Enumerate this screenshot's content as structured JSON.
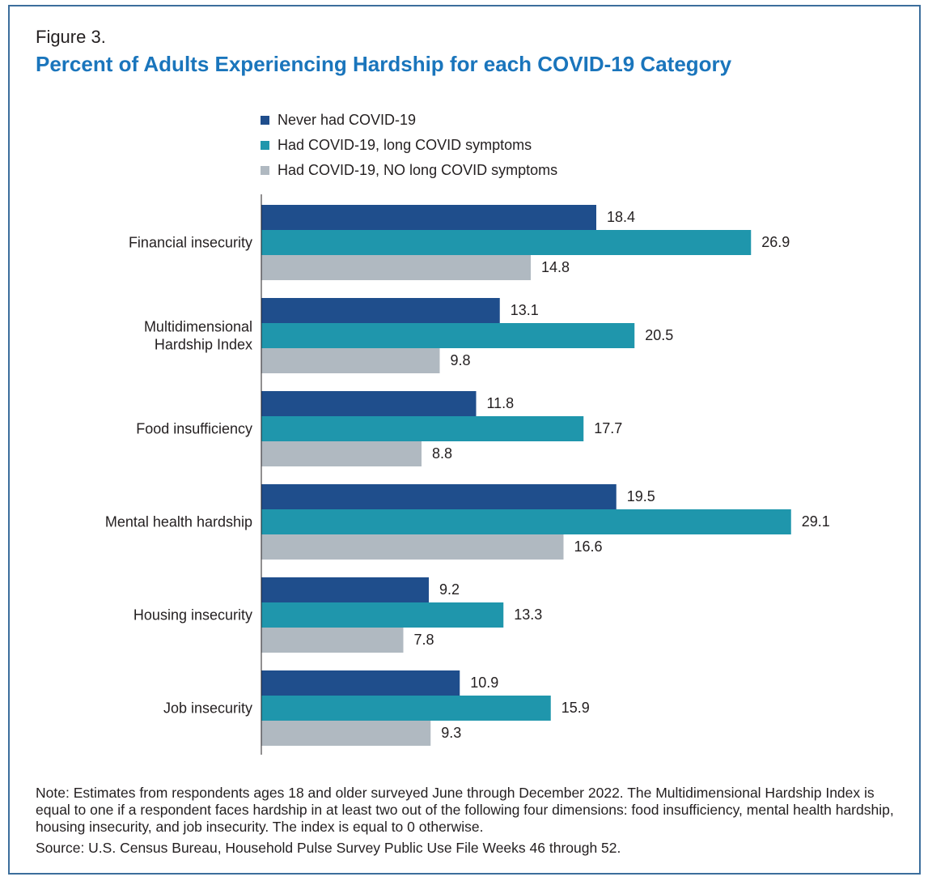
{
  "figure_label": "Figure 3.",
  "title": "Percent of Adults Experiencing Hardship for each COVID-19 Category",
  "note": "Note: Estimates from respondents ages 18 and older surveyed June through December 2022. The Multidimensional Hardship Index is equal to one if a respondent faces hardship in at least two out of the following four dimensions: food insufficiency, mental health hardship, housing insecurity, and job insecurity. The index is equal to 0 otherwise.",
  "source": "Source: U.S. Census Bureau, Household Pulse Survey Public Use File Weeks 46 through 52.",
  "colors": {
    "title": "#1a75bc",
    "never": "#1f4e8c",
    "long": "#1f96ac",
    "no_long": "#b0b9c1",
    "border": "#3c6e9c"
  },
  "chart_data": {
    "type": "bar",
    "orientation": "horizontal",
    "title": "Percent of Adults Experiencing Hardship for each COVID-19 Category",
    "xlabel": "",
    "ylabel": "",
    "xlim": [
      0,
      30
    ],
    "grid": false,
    "legend_position": "top",
    "categories": [
      [
        "Financial insecurity"
      ],
      [
        "Multidimensional",
        "Hardship Index"
      ],
      [
        "Food insufficiency"
      ],
      [
        "Mental health hardship"
      ],
      [
        "Housing insecurity"
      ],
      [
        "Job insecurity"
      ]
    ],
    "series": [
      {
        "name": "Never had COVID-19",
        "color": "#1f4e8c",
        "values": [
          18.4,
          13.1,
          11.8,
          19.5,
          9.2,
          10.9
        ]
      },
      {
        "name": "Had COVID-19, long COVID symptoms",
        "color": "#1f96ac",
        "values": [
          26.9,
          20.5,
          17.7,
          29.1,
          13.3,
          15.9
        ]
      },
      {
        "name": "Had COVID-19, NO long COVID symptoms",
        "color": "#b0b9c1",
        "values": [
          14.8,
          9.8,
          8.8,
          16.6,
          7.8,
          9.3
        ]
      }
    ]
  }
}
